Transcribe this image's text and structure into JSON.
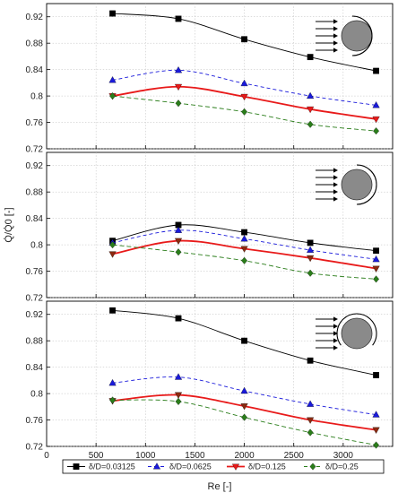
{
  "chart_data": [
    {
      "type": "line",
      "xlabel": "",
      "ylabel": "",
      "xlim": [
        0,
        3500
      ],
      "ylim": [
        0.72,
        0.94
      ],
      "yticks": [
        "0.92",
        "0.88",
        "0.84",
        "0.8",
        "0.76",
        "0.72"
      ],
      "series": [
        {
          "name": "δ/D=0.03125",
          "x": [
            667,
            1333,
            2000,
            2667,
            3333
          ],
          "y": [
            0.925,
            0.917,
            0.886,
            0.859,
            0.838
          ]
        },
        {
          "name": "δ/D=0.0625",
          "x": [
            667,
            1333,
            2000,
            2667,
            3333
          ],
          "y": [
            0.824,
            0.839,
            0.819,
            0.8,
            0.786
          ]
        },
        {
          "name": "δ/D=0.125",
          "x": [
            667,
            1333,
            2000,
            2667,
            3333
          ],
          "y": [
            0.8,
            0.814,
            0.799,
            0.78,
            0.765
          ]
        },
        {
          "name": "δ/D=0.25",
          "x": [
            667,
            1333,
            2000,
            2667,
            3333
          ],
          "y": [
            0.8,
            0.789,
            0.776,
            0.757,
            0.747
          ]
        }
      ],
      "inset": "shroud-right"
    },
    {
      "type": "line",
      "xlabel": "",
      "ylabel": "Q̇/Q̇0 [-]",
      "xlim": [
        0,
        3500
      ],
      "ylim": [
        0.72,
        0.94
      ],
      "yticks": [
        "0.92",
        "0.88",
        "0.84",
        "0.8",
        "0.76",
        "0.72"
      ],
      "series": [
        {
          "name": "δ/D=0.03125",
          "x": [
            667,
            1333,
            2000,
            2667,
            3333
          ],
          "y": [
            0.806,
            0.83,
            0.819,
            0.803,
            0.791
          ]
        },
        {
          "name": "δ/D=0.0625",
          "x": [
            667,
            1333,
            2000,
            2667,
            3333
          ],
          "y": [
            0.803,
            0.822,
            0.809,
            0.792,
            0.778
          ]
        },
        {
          "name": "δ/D=0.125",
          "x": [
            667,
            1333,
            2000,
            2667,
            3333
          ],
          "y": [
            0.786,
            0.806,
            0.794,
            0.78,
            0.764
          ]
        },
        {
          "name": "δ/D=0.25",
          "x": [
            667,
            1333,
            2000,
            2667,
            3333
          ],
          "y": [
            0.8,
            0.789,
            0.776,
            0.757,
            0.748
          ]
        }
      ],
      "inset": "shroud-back"
    },
    {
      "type": "line",
      "xlabel": "Re [-]",
      "ylabel": "",
      "xlim": [
        0,
        3500
      ],
      "ylim": [
        0.72,
        0.94
      ],
      "xticks": [
        "0",
        "500",
        "1000",
        "1500",
        "2000",
        "2500",
        "3000"
      ],
      "yticks": [
        "0.92",
        "0.88",
        "0.84",
        "0.8",
        "0.76",
        "0.72"
      ],
      "series": [
        {
          "name": "δ/D=0.03125",
          "x": [
            667,
            1333,
            2000,
            2667,
            3333
          ],
          "y": [
            0.926,
            0.914,
            0.88,
            0.85,
            0.828
          ]
        },
        {
          "name": "δ/D=0.0625",
          "x": [
            667,
            1333,
            2000,
            2667,
            3333
          ],
          "y": [
            0.816,
            0.825,
            0.804,
            0.784,
            0.768
          ]
        },
        {
          "name": "δ/D=0.125",
          "x": [
            667,
            1333,
            2000,
            2667,
            3333
          ],
          "y": [
            0.789,
            0.798,
            0.781,
            0.76,
            0.745
          ]
        },
        {
          "name": "δ/D=0.25",
          "x": [
            667,
            1333,
            2000,
            2667,
            3333
          ],
          "y": [
            0.79,
            0.788,
            0.764,
            0.741,
            0.722
          ]
        }
      ],
      "inset": "shroud-top"
    }
  ],
  "legend": {
    "entries": [
      {
        "label": "δ/D=0.03125",
        "color": "#000000",
        "marker": "square",
        "dash": "solid"
      },
      {
        "label": "δ/D=0.0625",
        "color": "#1a1adb",
        "marker": "triangle-up",
        "dash": "dashed"
      },
      {
        "label": "δ/D=0.125",
        "color": "#e81a1a",
        "marker": "triangle-down",
        "dash": "solid"
      },
      {
        "label": "δ/D=0.25",
        "color": "#2a7d1a",
        "marker": "diamond",
        "dash": "dashed"
      }
    ]
  },
  "colors": {
    "s0": "#000000",
    "s1": "#1a1adb",
    "s2": "#e81a1a",
    "s3": "#2a7d1a",
    "s2_bottom_marker": "#8b2a10"
  }
}
